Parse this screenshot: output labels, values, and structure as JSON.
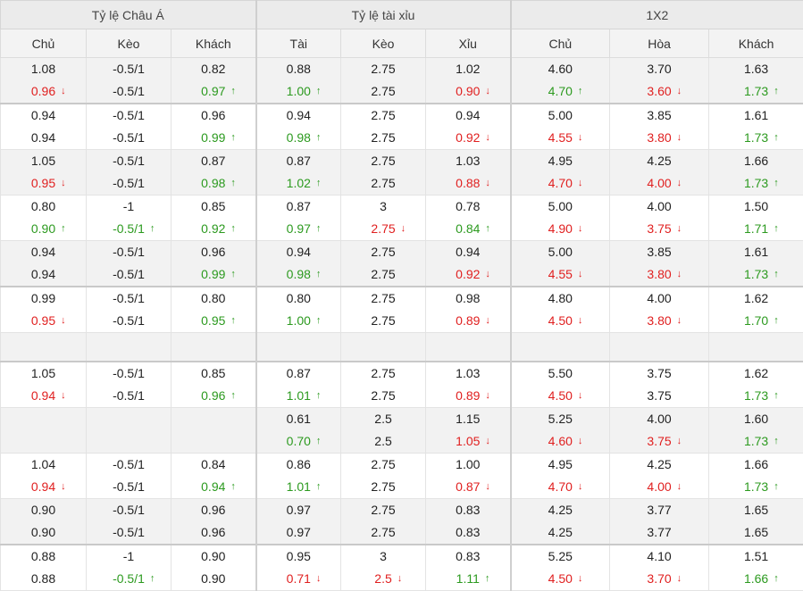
{
  "groups": [
    "Tỷ lệ Châu Á",
    "Tỷ lệ tài xỉu",
    "1X2"
  ],
  "columns": [
    "Chủ",
    "Kèo",
    "Khách",
    "Tài",
    "Kèo",
    "Xỉu",
    "Chủ",
    "Hòa",
    "Khách"
  ],
  "colors": {
    "up": "#2c9a1f",
    "down": "#e01f1f"
  },
  "rows": [
    {
      "bg": "gray",
      "sep": false,
      "cells": [
        [
          {
            "v": "1.08"
          },
          {
            "v": "0.96",
            "t": "down"
          }
        ],
        [
          {
            "v": "-0.5/1"
          },
          {
            "v": "-0.5/1"
          }
        ],
        [
          {
            "v": "0.82"
          },
          {
            "v": "0.97",
            "t": "up"
          }
        ],
        [
          {
            "v": "0.88"
          },
          {
            "v": "1.00",
            "t": "up"
          }
        ],
        [
          {
            "v": "2.75"
          },
          {
            "v": "2.75"
          }
        ],
        [
          {
            "v": "1.02"
          },
          {
            "v": "0.90",
            "t": "down"
          }
        ],
        [
          {
            "v": "4.60"
          },
          {
            "v": "4.70",
            "t": "up"
          }
        ],
        [
          {
            "v": "3.70"
          },
          {
            "v": "3.60",
            "t": "down"
          }
        ],
        [
          {
            "v": "1.63"
          },
          {
            "v": "1.73",
            "t": "up"
          }
        ]
      ]
    },
    {
      "bg": "white",
      "sep": true,
      "cells": [
        [
          {
            "v": "0.94"
          },
          {
            "v": "0.94"
          }
        ],
        [
          {
            "v": "-0.5/1"
          },
          {
            "v": "-0.5/1"
          }
        ],
        [
          {
            "v": "0.96"
          },
          {
            "v": "0.99",
            "t": "up"
          }
        ],
        [
          {
            "v": "0.94"
          },
          {
            "v": "0.98",
            "t": "up"
          }
        ],
        [
          {
            "v": "2.75"
          },
          {
            "v": "2.75"
          }
        ],
        [
          {
            "v": "0.94"
          },
          {
            "v": "0.92",
            "t": "down"
          }
        ],
        [
          {
            "v": "5.00"
          },
          {
            "v": "4.55",
            "t": "down"
          }
        ],
        [
          {
            "v": "3.85"
          },
          {
            "v": "3.80",
            "t": "down"
          }
        ],
        [
          {
            "v": "1.61"
          },
          {
            "v": "1.73",
            "t": "up"
          }
        ]
      ]
    },
    {
      "bg": "gray",
      "sep": false,
      "cells": [
        [
          {
            "v": "1.05"
          },
          {
            "v": "0.95",
            "t": "down"
          }
        ],
        [
          {
            "v": "-0.5/1"
          },
          {
            "v": "-0.5/1"
          }
        ],
        [
          {
            "v": "0.87"
          },
          {
            "v": "0.98",
            "t": "up"
          }
        ],
        [
          {
            "v": "0.87"
          },
          {
            "v": "1.02",
            "t": "up"
          }
        ],
        [
          {
            "v": "2.75"
          },
          {
            "v": "2.75"
          }
        ],
        [
          {
            "v": "1.03"
          },
          {
            "v": "0.88",
            "t": "down"
          }
        ],
        [
          {
            "v": "4.95"
          },
          {
            "v": "4.70",
            "t": "down"
          }
        ],
        [
          {
            "v": "4.25"
          },
          {
            "v": "4.00",
            "t": "down"
          }
        ],
        [
          {
            "v": "1.66"
          },
          {
            "v": "1.73",
            "t": "up"
          }
        ]
      ]
    },
    {
      "bg": "white",
      "sep": false,
      "cells": [
        [
          {
            "v": "0.80"
          },
          {
            "v": "0.90",
            "t": "up"
          }
        ],
        [
          {
            "v": "-1"
          },
          {
            "v": "-0.5/1",
            "t": "up"
          }
        ],
        [
          {
            "v": "0.85"
          },
          {
            "v": "0.92",
            "t": "up"
          }
        ],
        [
          {
            "v": "0.87"
          },
          {
            "v": "0.97",
            "t": "up"
          }
        ],
        [
          {
            "v": "3"
          },
          {
            "v": "2.75",
            "t": "down"
          }
        ],
        [
          {
            "v": "0.78"
          },
          {
            "v": "0.84",
            "t": "up"
          }
        ],
        [
          {
            "v": "5.00"
          },
          {
            "v": "4.90",
            "t": "down"
          }
        ],
        [
          {
            "v": "4.00"
          },
          {
            "v": "3.75",
            "t": "down"
          }
        ],
        [
          {
            "v": "1.50"
          },
          {
            "v": "1.71",
            "t": "up"
          }
        ]
      ]
    },
    {
      "bg": "gray",
      "sep": false,
      "cells": [
        [
          {
            "v": "0.94"
          },
          {
            "v": "0.94"
          }
        ],
        [
          {
            "v": "-0.5/1"
          },
          {
            "v": "-0.5/1"
          }
        ],
        [
          {
            "v": "0.96"
          },
          {
            "v": "0.99",
            "t": "up"
          }
        ],
        [
          {
            "v": "0.94"
          },
          {
            "v": "0.98",
            "t": "up"
          }
        ],
        [
          {
            "v": "2.75"
          },
          {
            "v": "2.75"
          }
        ],
        [
          {
            "v": "0.94"
          },
          {
            "v": "0.92",
            "t": "down"
          }
        ],
        [
          {
            "v": "5.00"
          },
          {
            "v": "4.55",
            "t": "down"
          }
        ],
        [
          {
            "v": "3.85"
          },
          {
            "v": "3.80",
            "t": "down"
          }
        ],
        [
          {
            "v": "1.61"
          },
          {
            "v": "1.73",
            "t": "up"
          }
        ]
      ]
    },
    {
      "bg": "white",
      "sep": true,
      "cells": [
        [
          {
            "v": "0.99"
          },
          {
            "v": "0.95",
            "t": "down"
          }
        ],
        [
          {
            "v": "-0.5/1"
          },
          {
            "v": "-0.5/1"
          }
        ],
        [
          {
            "v": "0.80"
          },
          {
            "v": "0.95",
            "t": "up"
          }
        ],
        [
          {
            "v": "0.80"
          },
          {
            "v": "1.00",
            "t": "up"
          }
        ],
        [
          {
            "v": "2.75"
          },
          {
            "v": "2.75"
          }
        ],
        [
          {
            "v": "0.98"
          },
          {
            "v": "0.89",
            "t": "down"
          }
        ],
        [
          {
            "v": "4.80"
          },
          {
            "v": "4.50",
            "t": "down"
          }
        ],
        [
          {
            "v": "4.00"
          },
          {
            "v": "3.80",
            "t": "down"
          }
        ],
        [
          {
            "v": "1.62"
          },
          {
            "v": "1.70",
            "t": "up"
          }
        ]
      ]
    },
    {
      "bg": "gray",
      "sep": false,
      "empty": true,
      "cells": []
    },
    {
      "bg": "white",
      "sep": true,
      "cells": [
        [
          {
            "v": "1.05"
          },
          {
            "v": "0.94",
            "t": "down"
          }
        ],
        [
          {
            "v": "-0.5/1"
          },
          {
            "v": "-0.5/1"
          }
        ],
        [
          {
            "v": "0.85"
          },
          {
            "v": "0.96",
            "t": "up"
          }
        ],
        [
          {
            "v": "0.87"
          },
          {
            "v": "1.01",
            "t": "up"
          }
        ],
        [
          {
            "v": "2.75"
          },
          {
            "v": "2.75"
          }
        ],
        [
          {
            "v": "1.03"
          },
          {
            "v": "0.89",
            "t": "down"
          }
        ],
        [
          {
            "v": "5.50"
          },
          {
            "v": "4.50",
            "t": "down"
          }
        ],
        [
          {
            "v": "3.75"
          },
          {
            "v": "3.75"
          }
        ],
        [
          {
            "v": "1.62"
          },
          {
            "v": "1.73",
            "t": "up"
          }
        ]
      ]
    },
    {
      "bg": "gray",
      "sep": false,
      "cells": [
        [],
        [],
        [],
        [
          {
            "v": "0.61"
          },
          {
            "v": "0.70",
            "t": "up"
          }
        ],
        [
          {
            "v": "2.5"
          },
          {
            "v": "2.5"
          }
        ],
        [
          {
            "v": "1.15"
          },
          {
            "v": "1.05",
            "t": "down"
          }
        ],
        [
          {
            "v": "5.25"
          },
          {
            "v": "4.60",
            "t": "down"
          }
        ],
        [
          {
            "v": "4.00"
          },
          {
            "v": "3.75",
            "t": "down"
          }
        ],
        [
          {
            "v": "1.60"
          },
          {
            "v": "1.73",
            "t": "up"
          }
        ]
      ]
    },
    {
      "bg": "white",
      "sep": false,
      "cells": [
        [
          {
            "v": "1.04"
          },
          {
            "v": "0.94",
            "t": "down"
          }
        ],
        [
          {
            "v": "-0.5/1"
          },
          {
            "v": "-0.5/1"
          }
        ],
        [
          {
            "v": "0.84"
          },
          {
            "v": "0.94",
            "t": "up"
          }
        ],
        [
          {
            "v": "0.86"
          },
          {
            "v": "1.01",
            "t": "up"
          }
        ],
        [
          {
            "v": "2.75"
          },
          {
            "v": "2.75"
          }
        ],
        [
          {
            "v": "1.00"
          },
          {
            "v": "0.87",
            "t": "down"
          }
        ],
        [
          {
            "v": "4.95"
          },
          {
            "v": "4.70",
            "t": "down"
          }
        ],
        [
          {
            "v": "4.25"
          },
          {
            "v": "4.00",
            "t": "down"
          }
        ],
        [
          {
            "v": "1.66"
          },
          {
            "v": "1.73",
            "t": "up"
          }
        ]
      ]
    },
    {
      "bg": "gray",
      "sep": false,
      "cells": [
        [
          {
            "v": "0.90"
          },
          {
            "v": "0.90"
          }
        ],
        [
          {
            "v": "-0.5/1"
          },
          {
            "v": "-0.5/1"
          }
        ],
        [
          {
            "v": "0.96"
          },
          {
            "v": "0.96"
          }
        ],
        [
          {
            "v": "0.97"
          },
          {
            "v": "0.97"
          }
        ],
        [
          {
            "v": "2.75"
          },
          {
            "v": "2.75"
          }
        ],
        [
          {
            "v": "0.83"
          },
          {
            "v": "0.83"
          }
        ],
        [
          {
            "v": "4.25"
          },
          {
            "v": "4.25"
          }
        ],
        [
          {
            "v": "3.77"
          },
          {
            "v": "3.77"
          }
        ],
        [
          {
            "v": "1.65"
          },
          {
            "v": "1.65"
          }
        ]
      ]
    },
    {
      "bg": "white",
      "sep": true,
      "cells": [
        [
          {
            "v": "0.88"
          },
          {
            "v": "0.88"
          }
        ],
        [
          {
            "v": "-1"
          },
          {
            "v": "-0.5/1",
            "t": "up"
          }
        ],
        [
          {
            "v": "0.90"
          },
          {
            "v": "0.90"
          }
        ],
        [
          {
            "v": "0.95"
          },
          {
            "v": "0.71",
            "t": "down"
          }
        ],
        [
          {
            "v": "3"
          },
          {
            "v": "2.5",
            "t": "down"
          }
        ],
        [
          {
            "v": "0.83"
          },
          {
            "v": "1.11",
            "t": "up"
          }
        ],
        [
          {
            "v": "5.25"
          },
          {
            "v": "4.50",
            "t": "down"
          }
        ],
        [
          {
            "v": "4.10"
          },
          {
            "v": "3.70",
            "t": "down"
          }
        ],
        [
          {
            "v": "1.51"
          },
          {
            "v": "1.66",
            "t": "up"
          }
        ]
      ]
    }
  ]
}
